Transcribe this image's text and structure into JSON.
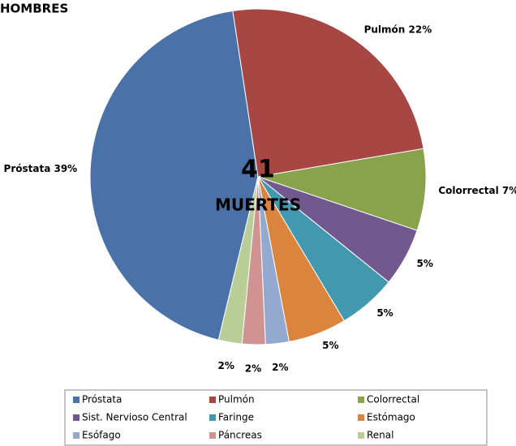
{
  "chart_data": {
    "type": "pie",
    "title": "HOMBRES",
    "annotations": [
      "41",
      "MUERTES"
    ],
    "categories": [
      "Próstata",
      "Pulmón",
      "Colorrectal",
      "Sist. Nervioso Central",
      "Faringe",
      "Estómago",
      "Esófago",
      "Páncreas",
      "Renal"
    ],
    "values": [
      39,
      22,
      7,
      5,
      5,
      5,
      2,
      2,
      2
    ],
    "value_labels": [
      "Próstata 39%",
      "Pulmón 22%",
      "Colorrectal 7%",
      "5%",
      "5%",
      "5%",
      "2%",
      "2%",
      "2%"
    ],
    "colors": [
      "#4a72a8",
      "#a84644",
      "#89a24c",
      "#71588f",
      "#4198af",
      "#db843d",
      "#93a9cf",
      "#d19392",
      "#b9cd96"
    ],
    "legend": "bottom"
  }
}
